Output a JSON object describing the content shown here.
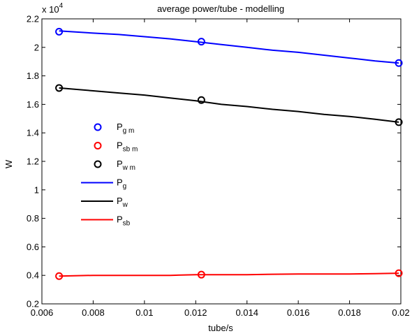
{
  "chart_data": {
    "type": "line",
    "title": "average power/tube - modelling",
    "xlabel": "tube/s",
    "ylabel": "W",
    "xlim": [
      0.006,
      0.02
    ],
    "ylim": [
      0.2,
      2.2
    ],
    "y_multiplier": "x 10",
    "y_multiplier_exponent": "4",
    "xticks": [
      0.006,
      0.008,
      0.01,
      0.012,
      0.014,
      0.016,
      0.018,
      0.02
    ],
    "xtick_labels": [
      "0.006",
      "0.008",
      "0.01",
      "0.012",
      "0.014",
      "0.016",
      "0.018",
      "0.02"
    ],
    "yticks": [
      0.2,
      0.4,
      0.6,
      0.8,
      1.0,
      1.2,
      1.4,
      1.6,
      1.8,
      2.0,
      2.2
    ],
    "ytick_labels": [
      "0.2",
      "0.4",
      "0.6",
      "0.8",
      "1",
      "1.2",
      "1.4",
      "1.6",
      "1.8",
      "2",
      "2.2"
    ],
    "grid": false,
    "legend_position": "left-middle",
    "colors": {
      "blue": "#0000ff",
      "red": "#ff0000",
      "black": "#000000"
    },
    "marker_series": [
      {
        "label": "P",
        "sub": "g m",
        "color": "#0000ff",
        "x": [
          0.00667,
          0.01222,
          0.01992
        ],
        "y": [
          2.11,
          2.04,
          1.89
        ]
      },
      {
        "label": "P",
        "sub": "sb m",
        "color": "#ff0000",
        "x": [
          0.00667,
          0.01222,
          0.01992
        ],
        "y": [
          0.395,
          0.405,
          0.415
        ]
      },
      {
        "label": "P",
        "sub": "w m",
        "color": "#000000",
        "x": [
          0.00667,
          0.01222,
          0.01992
        ],
        "y": [
          1.715,
          1.63,
          1.475
        ]
      }
    ],
    "line_series": [
      {
        "label": "P",
        "sub": "g",
        "color": "#0000ff",
        "x": [
          0.00667,
          0.008,
          0.009,
          0.01,
          0.011,
          0.012,
          0.013,
          0.014,
          0.015,
          0.016,
          0.017,
          0.018,
          0.019,
          0.01992
        ],
        "y": [
          2.115,
          2.1,
          2.09,
          2.075,
          2.06,
          2.04,
          2.02,
          2.0,
          1.98,
          1.965,
          1.945,
          1.925,
          1.905,
          1.89
        ]
      },
      {
        "label": "P",
        "sub": "w",
        "color": "#000000",
        "x": [
          0.00667,
          0.008,
          0.009,
          0.01,
          0.011,
          0.012,
          0.013,
          0.014,
          0.015,
          0.016,
          0.017,
          0.018,
          0.019,
          0.01992
        ],
        "y": [
          1.715,
          1.695,
          1.68,
          1.665,
          1.645,
          1.625,
          1.6,
          1.585,
          1.565,
          1.55,
          1.53,
          1.515,
          1.495,
          1.475
        ]
      },
      {
        "label": "P",
        "sub": "sb",
        "color": "#ff0000",
        "x": [
          0.00667,
          0.008,
          0.009,
          0.01,
          0.011,
          0.012,
          0.013,
          0.014,
          0.015,
          0.016,
          0.017,
          0.018,
          0.019,
          0.01992
        ],
        "y": [
          0.395,
          0.4,
          0.4,
          0.4,
          0.4,
          0.405,
          0.405,
          0.405,
          0.408,
          0.41,
          0.41,
          0.41,
          0.412,
          0.415
        ]
      }
    ]
  }
}
